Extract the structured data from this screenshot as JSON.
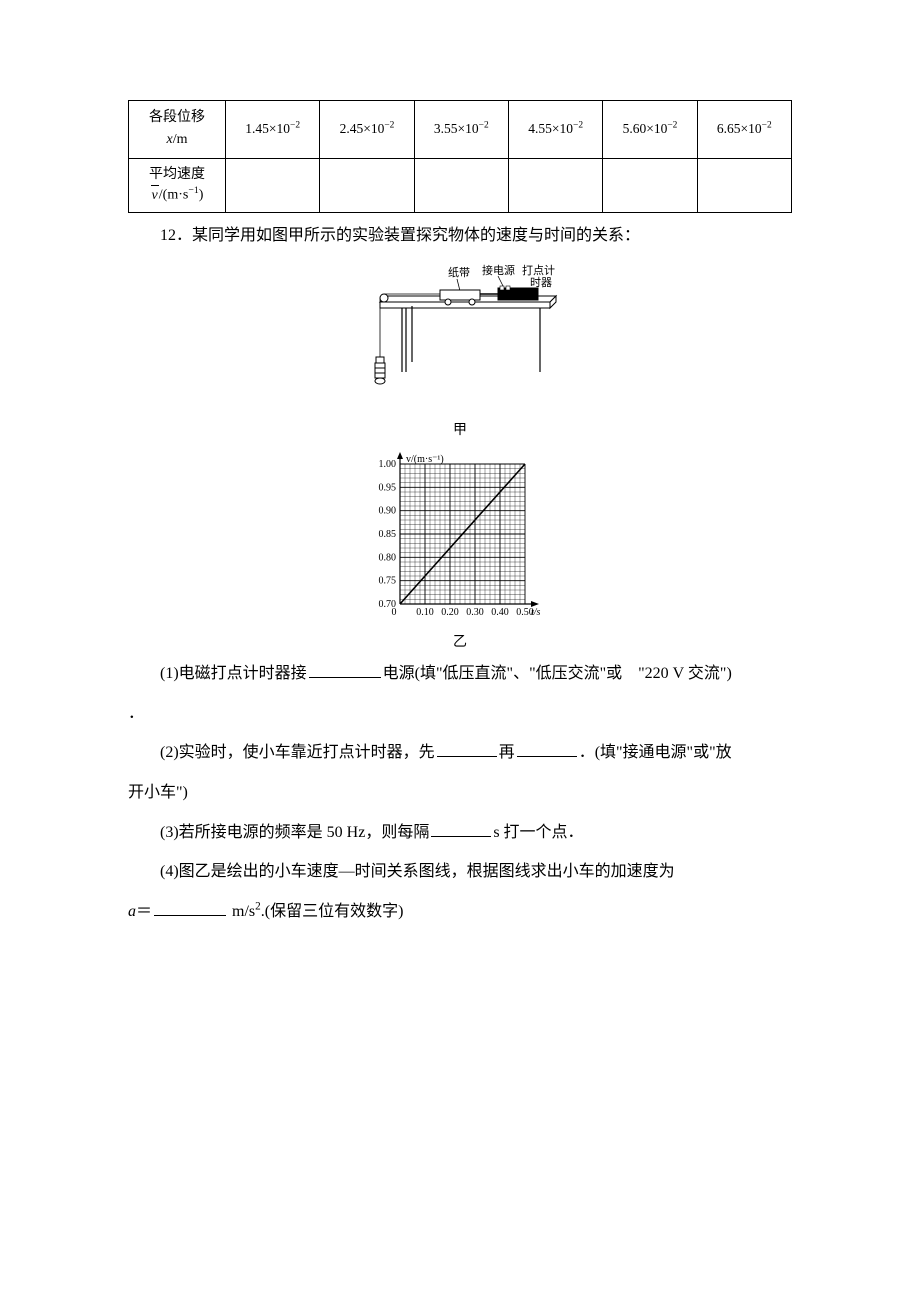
{
  "table": {
    "row1_label_l1": "各段位移",
    "row1_label_l2_var": "x",
    "row1_label_l2_unit": "/m",
    "row2_label_l1": "平均速度",
    "row2_label_l2_var": "v",
    "row2_label_l2_unit": "/(m·s",
    "row2_label_l2_exp": "−1",
    "row2_label_l2_close": ")",
    "cells": [
      "1.45×10",
      "2.45×10",
      "3.55×10",
      "4.55×10",
      "5.60×10",
      "6.65×10"
    ],
    "exp": "−2"
  },
  "q12": {
    "lead": "12．某同学用如图甲所示的实验装置探究物体的速度与时间的关系：",
    "apparatus": {
      "tape": "纸带",
      "power": "接电源",
      "timer": "打点计\n时器",
      "caption": "甲"
    },
    "graph": {
      "ylabel": "v/(m·s⁻¹)",
      "xlabel": "t/s",
      "yticks": [
        "0.70",
        "0.75",
        "0.80",
        "0.85",
        "0.90",
        "0.95",
        "1.00"
      ],
      "xticks": [
        "0",
        "0.10",
        "0.20",
        "0.30",
        "0.40",
        "0.50"
      ],
      "caption": "乙",
      "line_color": "#000000",
      "grid_color": "#000000",
      "background_color": "#ffffff",
      "xlim": [
        0,
        0.5
      ],
      "ylim": [
        0.7,
        1.0
      ],
      "axis_fontsize": 10
    },
    "p1_a": "(1)电磁打点计时器接",
    "p1_b": "电源(填\"低压直流\"、\"低压交流\"或　\"220 V 交流\")",
    "dot": "．",
    "p2_a": "(2)实验时，使小车靠近打点计时器，先",
    "p2_b": "再",
    "p2_c": "．(填\"接通电源\"或\"放",
    "p2_d": "开小车\")",
    "p3_a": "(3)若所接电源的频率是 50 Hz，则每隔",
    "p3_b": "s 打一个点．",
    "p4_a": "(4)图乙是绘出的小车速度—时间关系图线，根据图线求出小车的加速度为",
    "p5_a_var": "a",
    "p5_a_eq": "＝",
    "p5_b": " m/s",
    "p5_exp": "2",
    "p5_c": ".(保留三位有效数字)"
  }
}
